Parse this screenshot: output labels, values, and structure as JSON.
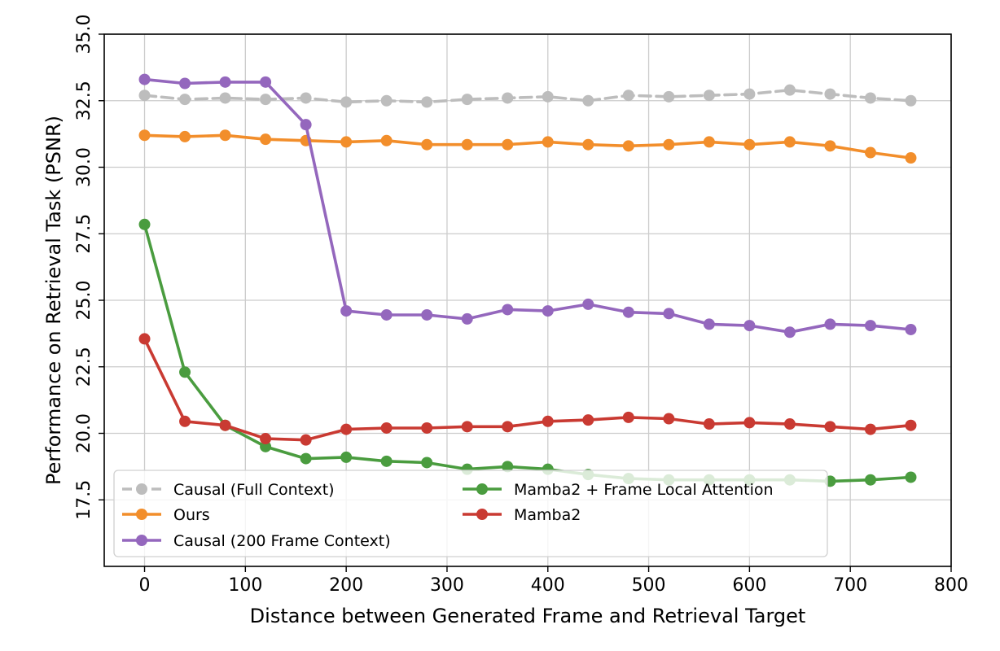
{
  "chart_data": {
    "type": "line",
    "xlabel": "Distance between Generated Frame and Retrieval Target",
    "ylabel": "Performance on Retrieval Task (PSNR)",
    "xlim": [
      -40,
      800
    ],
    "ylim": [
      15,
      35
    ],
    "xticks": [
      0,
      100,
      200,
      300,
      400,
      500,
      600,
      700,
      800
    ],
    "yticks": [
      17.5,
      20.0,
      22.5,
      25.0,
      27.5,
      30.0,
      32.5,
      35.0
    ],
    "xtick_labels": [
      "0",
      "100",
      "200",
      "300",
      "400",
      "500",
      "600",
      "700",
      "800"
    ],
    "ytick_labels": [
      "17.5",
      "20.0",
      "22.5",
      "25.0",
      "27.5",
      "30.0",
      "32.5",
      "35.0"
    ],
    "grid": true,
    "legend_position": "lower-left",
    "x": [
      0,
      40,
      80,
      120,
      160,
      200,
      240,
      280,
      320,
      360,
      400,
      440,
      480,
      520,
      560,
      600,
      640,
      680,
      720,
      760
    ],
    "series": [
      {
        "name": "Causal (Full Context)",
        "color": "#bdbdbd",
        "dashed": true,
        "values": [
          32.7,
          32.55,
          32.6,
          32.55,
          32.6,
          32.45,
          32.5,
          32.45,
          32.55,
          32.6,
          32.65,
          32.5,
          32.7,
          32.65,
          32.7,
          32.75,
          32.9,
          32.75,
          32.6,
          32.5
        ]
      },
      {
        "name": "Ours",
        "color": "#f28e2b",
        "dashed": false,
        "values": [
          31.2,
          31.15,
          31.2,
          31.05,
          31.0,
          30.95,
          31.0,
          30.85,
          30.85,
          30.85,
          30.95,
          30.85,
          30.8,
          30.85,
          30.95,
          30.85,
          30.95,
          30.8,
          30.55,
          30.35
        ]
      },
      {
        "name": "Causal (200 Frame Context)",
        "color": "#9467bd",
        "dashed": false,
        "values": [
          33.3,
          33.15,
          33.2,
          33.2,
          31.6,
          24.6,
          24.45,
          24.45,
          24.3,
          24.65,
          24.6,
          24.85,
          24.55,
          24.5,
          24.1,
          24.05,
          23.8,
          24.1,
          24.05,
          23.9
        ]
      },
      {
        "name": "Mamba2 + Frame Local Attention",
        "color": "#4a9c3f",
        "dashed": false,
        "values": [
          27.85,
          22.3,
          20.3,
          19.5,
          19.05,
          19.1,
          18.95,
          18.9,
          18.65,
          18.75,
          18.65,
          18.45,
          18.3,
          18.25,
          18.25,
          18.25,
          18.25,
          18.2,
          18.25,
          18.35
        ]
      },
      {
        "name": "Mamba2",
        "color": "#c93a32",
        "dashed": false,
        "values": [
          23.55,
          20.45,
          20.3,
          19.8,
          19.75,
          20.15,
          20.2,
          20.2,
          20.25,
          20.25,
          20.45,
          20.5,
          20.6,
          20.55,
          20.35,
          20.4,
          20.35,
          20.25,
          20.15,
          20.3
        ]
      }
    ]
  }
}
